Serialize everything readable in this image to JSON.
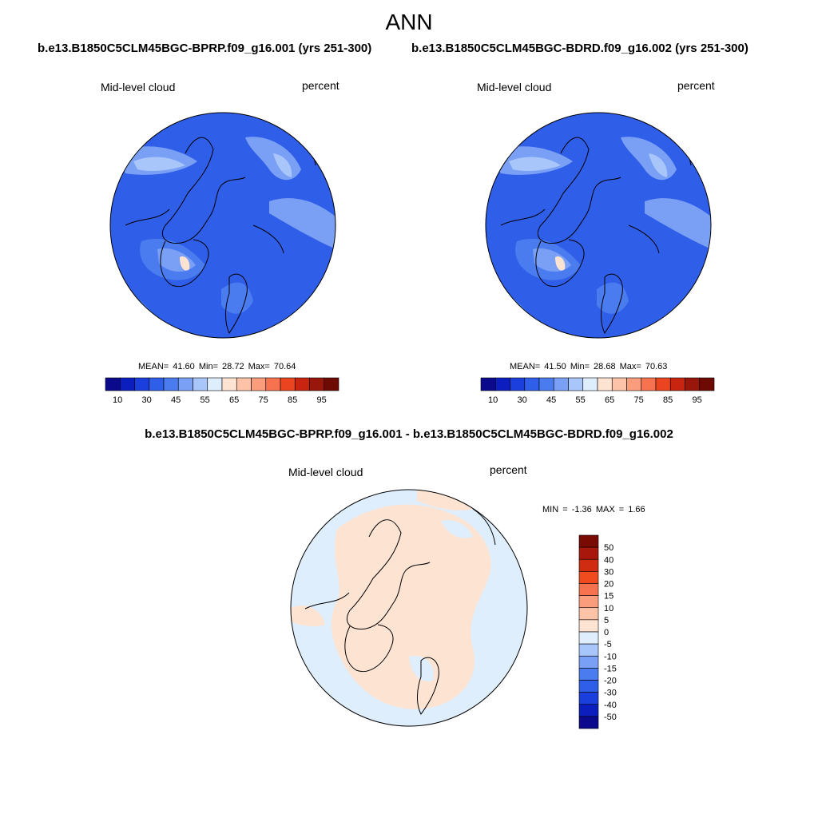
{
  "page": {
    "title": "ANN"
  },
  "panels": [
    {
      "case": "b.e13.B1850C5CLM45BGC-BPRP.f09_g16.001 (yrs 251-300)",
      "variable": "Mid-level cloud",
      "units": "percent",
      "stats": {
        "mean": "41.60",
        "min": "28.72",
        "max": "70.64"
      },
      "stats_line": "MEAN=  41.60  Min=  28.72  Max=  70.64"
    },
    {
      "case": "b.e13.B1850C5CLM45BGC-BDRD.f09_g16.002 (yrs 251-300)",
      "variable": "Mid-level cloud",
      "units": "percent",
      "stats": {
        "mean": "41.50",
        "min": "28.68",
        "max": "70.63"
      },
      "stats_line": "MEAN=  41.50  Min=  28.68  Max=  70.63"
    }
  ],
  "difference": {
    "title": "b.e13.B1850C5CLM45BGC-BPRP.f09_g16.001 - b.e13.B1850C5CLM45BGC-BDRD.f09_g16.002",
    "variable": "Mid-level cloud",
    "units": "percent",
    "stats": {
      "min": "-1.36",
      "max": "1.66"
    },
    "stats_line": "MIN =  -1.36 MAX =   1.66"
  },
  "colorbars": {
    "field": {
      "colors": [
        "#0b0a8c",
        "#0c1ebe",
        "#1a3fdc",
        "#2f5ee8",
        "#4a7cf0",
        "#7aa0f5",
        "#a8c6fa",
        "#dfeefc",
        "#fde3d2",
        "#fcc3a8",
        "#fa9d7c",
        "#f7724f",
        "#ea4520",
        "#c9240f",
        "#98160a",
        "#6e0a04"
      ],
      "tick_labels": [
        "10",
        "30",
        "45",
        "55",
        "65",
        "75",
        "85",
        "95"
      ]
    },
    "diff": {
      "colors": [
        "#7a0a04",
        "#a8170b",
        "#d02c12",
        "#ef4b1e",
        "#f7724f",
        "#fa9d7c",
        "#fcc3a8",
        "#fde3d2",
        "#dfeefc",
        "#a8c6fa",
        "#7aa0f5",
        "#4a7cf0",
        "#2f5ee8",
        "#1a3fdc",
        "#0c1ebe",
        "#0b0a8c"
      ],
      "tick_labels": [
        "50",
        "40",
        "30",
        "20",
        "15",
        "10",
        "5",
        "0",
        "-5",
        "-10",
        "-15",
        "-20",
        "-30",
        "-40",
        "-50"
      ]
    }
  },
  "map_colors": {
    "field_base": "#2f5ee8",
    "field_mid": "#4a7cf0",
    "field_light": "#7aa0f5",
    "field_pale": "#a8c6fa",
    "field_peak": "#fde3d2",
    "diff_pos": "#fde3d2",
    "diff_neg": "#dfeefc"
  }
}
